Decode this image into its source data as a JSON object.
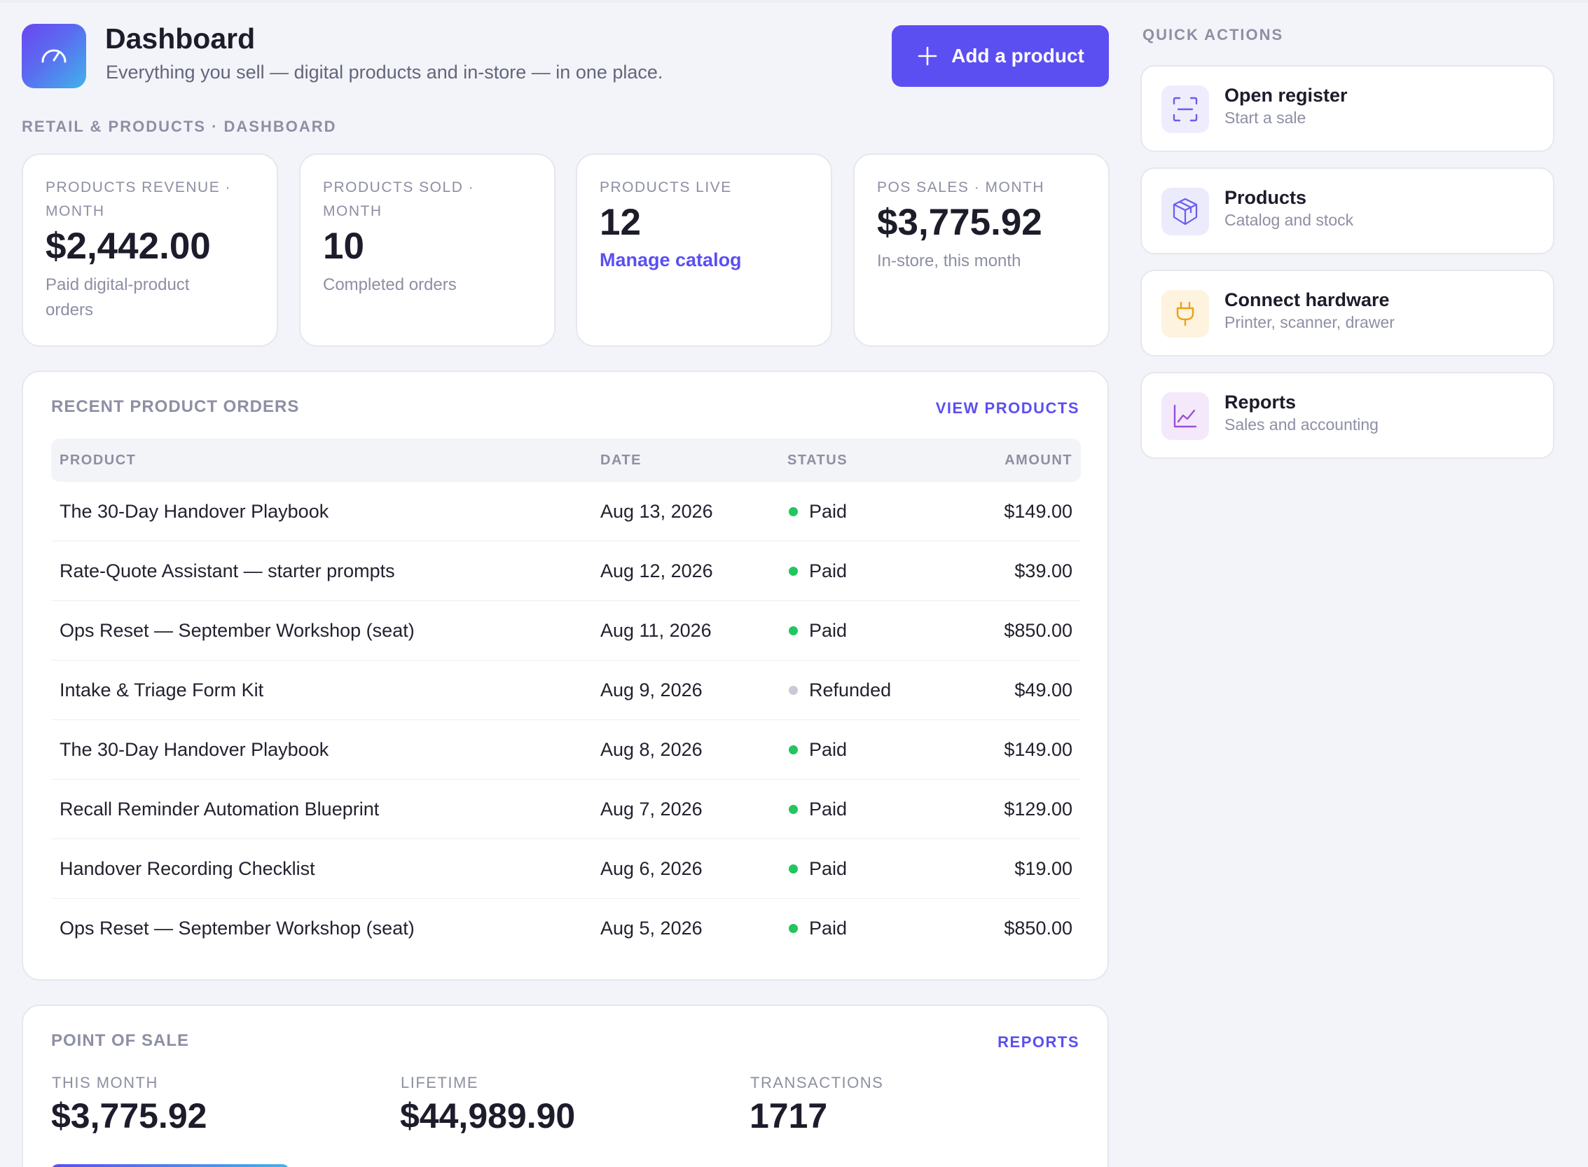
{
  "header": {
    "title": "Dashboard",
    "subtitle": "Everything you sell — digital products and in-store — in one place.",
    "add_button_label": "Add a product",
    "breadcrumb": "RETAIL & PRODUCTS · DASHBOARD"
  },
  "stats": [
    {
      "label": "PRODUCTS REVENUE · MONTH",
      "value": "$2,442.00",
      "note": "Paid digital-product orders"
    },
    {
      "label": "PRODUCTS SOLD · MONTH",
      "value": "10",
      "note": "Completed orders"
    },
    {
      "label": "PRODUCTS LIVE",
      "value": "12",
      "link": "Manage catalog"
    },
    {
      "label": "POS SALES · MONTH",
      "value": "$3,775.92",
      "note": "In-store, this month"
    }
  ],
  "orders": {
    "title": "RECENT PRODUCT ORDERS",
    "link": "VIEW PRODUCTS",
    "columns": {
      "product": "PRODUCT",
      "date": "DATE",
      "status": "STATUS",
      "amount": "AMOUNT"
    },
    "rows": [
      {
        "product": "The 30-Day Handover Playbook",
        "date": "Aug 13, 2026",
        "status": "Paid",
        "amount": "$149.00"
      },
      {
        "product": "Rate-Quote Assistant — starter prompts",
        "date": "Aug 12, 2026",
        "status": "Paid",
        "amount": "$39.00"
      },
      {
        "product": "Ops Reset — September Workshop (seat)",
        "date": "Aug 11, 2026",
        "status": "Paid",
        "amount": "$850.00"
      },
      {
        "product": "Intake & Triage Form Kit",
        "date": "Aug 9, 2026",
        "status": "Refunded",
        "amount": "$49.00"
      },
      {
        "product": "The 30-Day Handover Playbook",
        "date": "Aug 8, 2026",
        "status": "Paid",
        "amount": "$149.00"
      },
      {
        "product": "Recall Reminder Automation Blueprint",
        "date": "Aug 7, 2026",
        "status": "Paid",
        "amount": "$129.00"
      },
      {
        "product": "Handover Recording Checklist",
        "date": "Aug 6, 2026",
        "status": "Paid",
        "amount": "$19.00"
      },
      {
        "product": "Ops Reset — September Workshop (seat)",
        "date": "Aug 5, 2026",
        "status": "Paid",
        "amount": "$850.00"
      }
    ]
  },
  "pos": {
    "title": "POINT OF SALE",
    "link": "REPORTS",
    "metrics": [
      {
        "label": "THIS MONTH",
        "value": "$3,775.92"
      },
      {
        "label": "LIFETIME",
        "value": "$44,989.90"
      },
      {
        "label": "TRANSACTIONS",
        "value": "1717"
      }
    ]
  },
  "quick_actions": {
    "heading": "QUICK ACTIONS",
    "items": [
      {
        "title": "Open register",
        "subtitle": "Start a sale",
        "icon": "scan-icon"
      },
      {
        "title": "Products",
        "subtitle": "Catalog and stock",
        "icon": "box-icon"
      },
      {
        "title": "Connect hardware",
        "subtitle": "Printer, scanner, drawer",
        "icon": "plug-icon"
      },
      {
        "title": "Reports",
        "subtitle": "Sales and accounting",
        "icon": "chart-line-icon"
      }
    ]
  },
  "colors": {
    "accent": "#5b4ff2",
    "paid": "#22c55e",
    "refunded": "#c9cad6",
    "muted": "#8d8fa3",
    "background": "#f3f4f9"
  }
}
